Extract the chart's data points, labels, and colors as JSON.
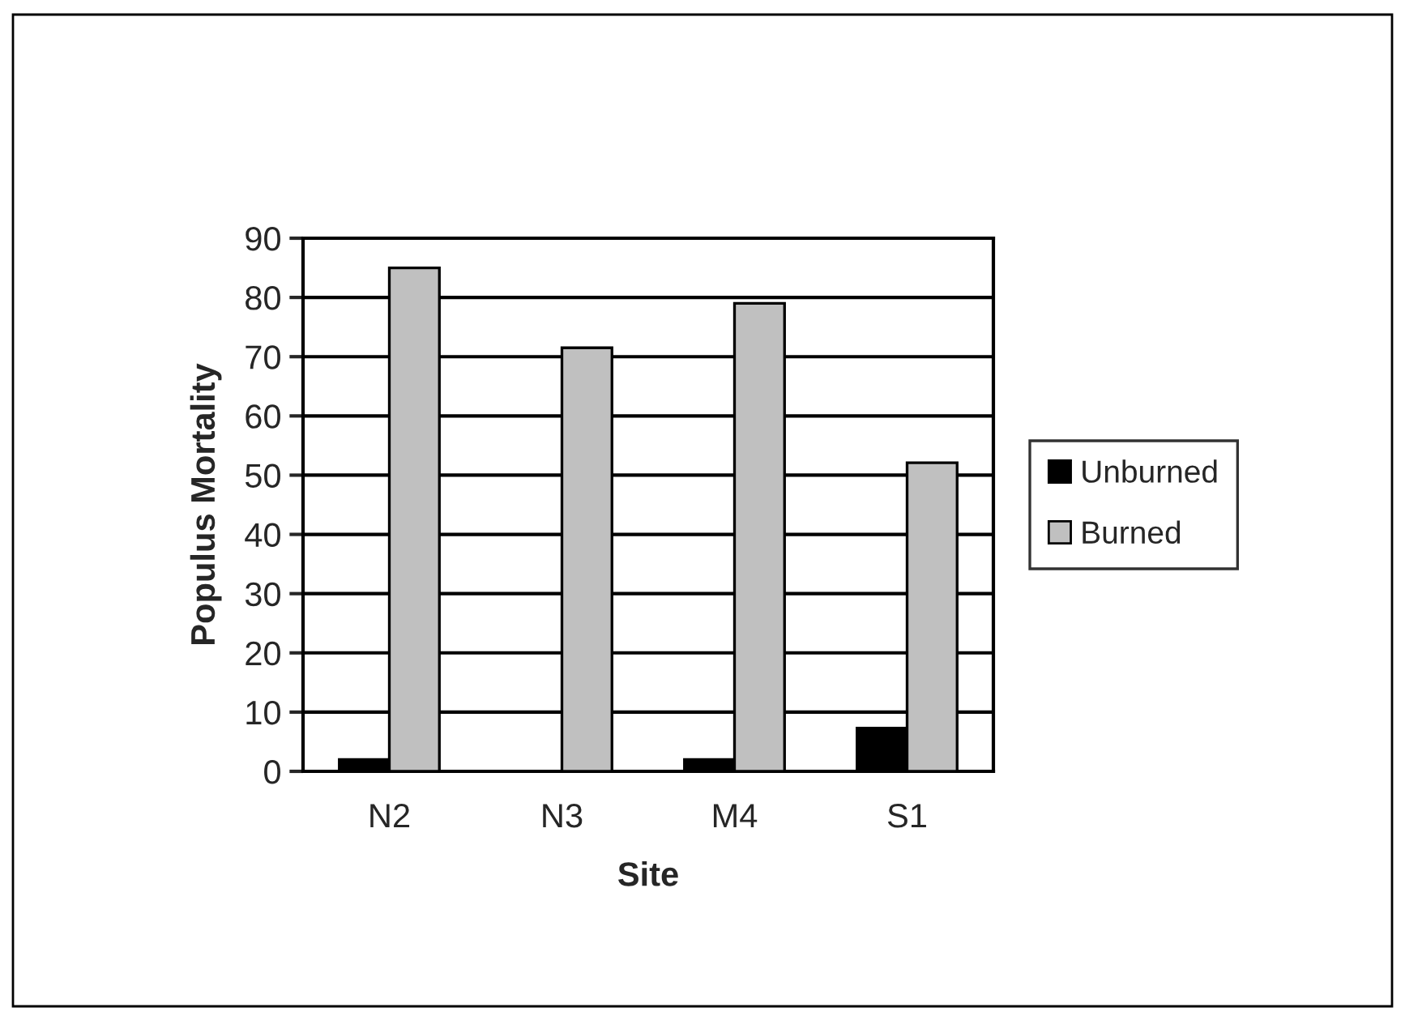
{
  "chart_data": {
    "type": "bar",
    "xlabel": "Site",
    "ylabel": "Populus Mortality",
    "categories": [
      "N2",
      "N3",
      "M4",
      "S1"
    ],
    "series": [
      {
        "name": "Unburned",
        "color": "#000000",
        "values": [
          2,
          0,
          2,
          7.3
        ]
      },
      {
        "name": "Burned",
        "color": "#c0c0c0",
        "values": [
          85,
          71.5,
          79,
          52.1
        ]
      }
    ],
    "ylim": [
      0,
      90
    ],
    "yticks": [
      0,
      10,
      20,
      30,
      40,
      50,
      60,
      70,
      80,
      90
    ],
    "grid": "y",
    "legend": "right"
  }
}
